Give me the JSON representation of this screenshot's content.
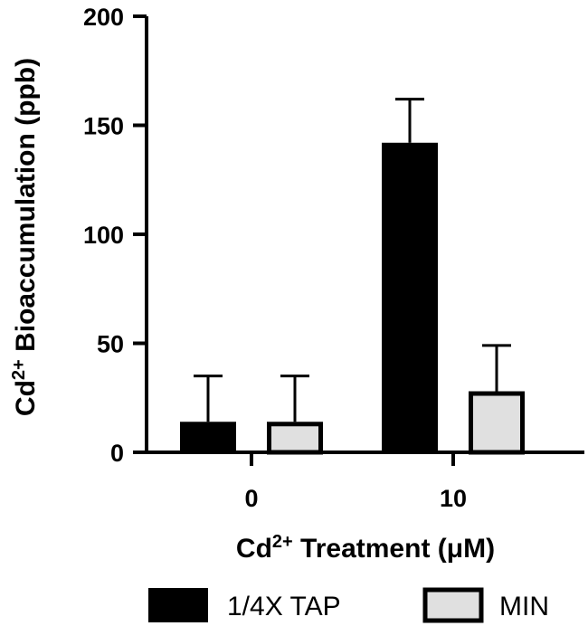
{
  "chart_data": {
    "type": "bar",
    "categories": [
      "0",
      "10"
    ],
    "series": [
      {
        "name": "1/4X TAP",
        "values": [
          14,
          142
        ],
        "errors": [
          21,
          20
        ],
        "color": "#000000"
      },
      {
        "name": "MIN",
        "values": [
          14,
          28
        ],
        "errors": [
          21,
          21
        ],
        "color": "#e0e0e0"
      }
    ],
    "xlabel": {
      "base": "Cd",
      "sup": "2+",
      "rest": " Treatment (μM)"
    },
    "ylabel": {
      "base": "Cd",
      "sup": "2+",
      "rest": " Bioaccumulation (ppb)"
    },
    "ylim": [
      0,
      200
    ],
    "yticks": [
      "0",
      "50",
      "100",
      "150",
      "200"
    ],
    "grid": false,
    "legend_position": "bottom"
  }
}
